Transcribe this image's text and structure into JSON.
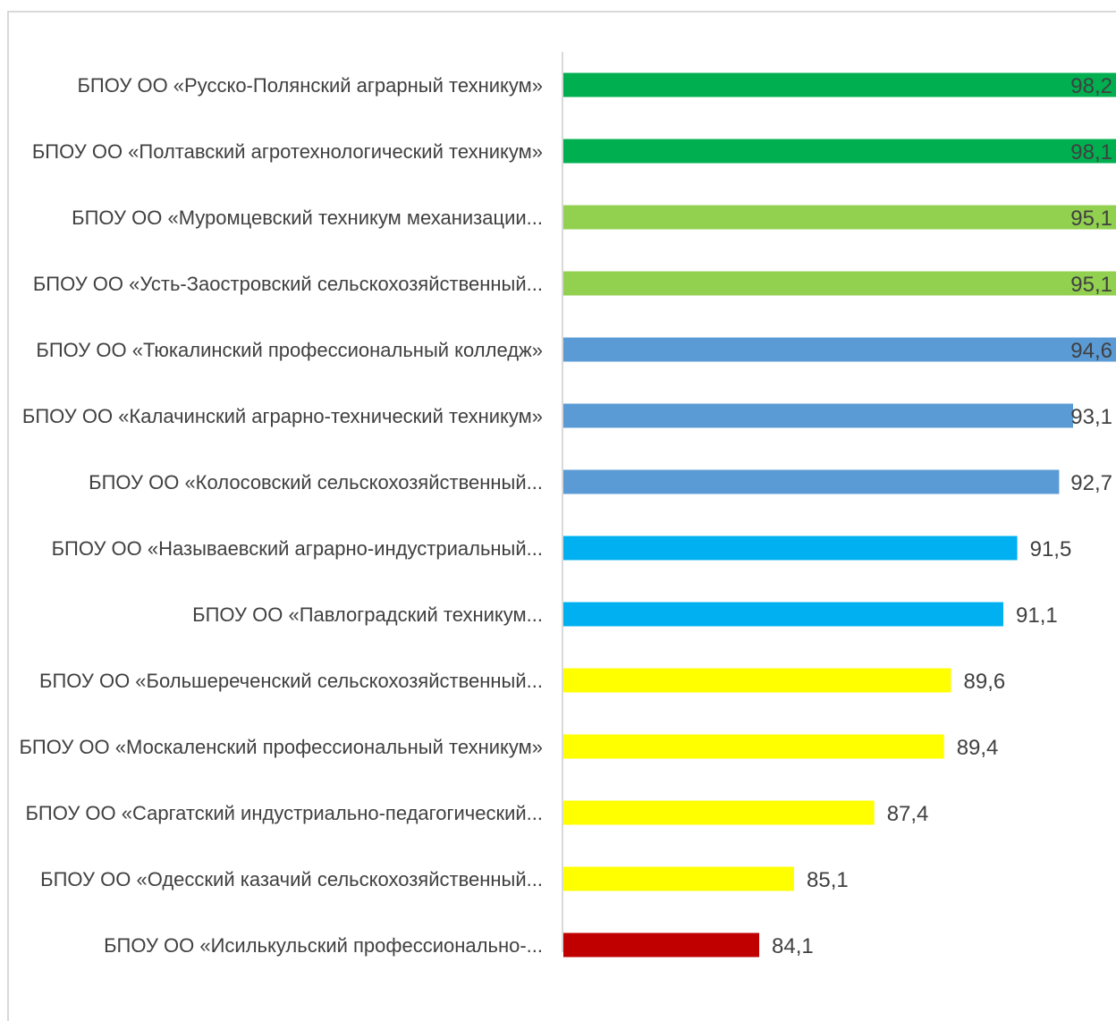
{
  "chart_data": {
    "type": "bar",
    "orientation": "horizontal",
    "title": "",
    "xlabel": "",
    "ylabel": "",
    "xlim": [
      80,
      100
    ],
    "grid": false,
    "legend": "none",
    "categories": [
      "БПОУ ОО «Русско-Полянский аграрный техникум»",
      "БПОУ ОО «Полтавский агротехнологический техникум»",
      "БПОУ ОО «Муромцевский техникум механизации...",
      "БПОУ ОО «Усть-Заостровский сельскохозяйственный...",
      "БПОУ ОО «Тюкалинский профессиональный колледж»",
      "БПОУ ОО «Калачинский аграрно-технический техникум»",
      "БПОУ ОО «Колосовский сельскохозяйственный...",
      "БПОУ ОО «Называевский аграрно-индустриальный...",
      "БПОУ ОО «Павлоградский техникум...",
      "БПОУ ОО «Большереченский сельскохозяйственный...",
      "БПОУ ОО «Москаленский профессиональный техникум»",
      "БПОУ ОО «Саргатский индустриально-педагогический...",
      "БПОУ ОО «Одесский казачий сельскохозяйственный...",
      "БПОУ ОО «Исилькульский профессионально-..."
    ],
    "values": [
      98.2,
      98.1,
      95.1,
      95.1,
      94.6,
      93.1,
      92.7,
      91.5,
      91.1,
      89.6,
      89.4,
      87.4,
      85.1,
      84.1
    ],
    "value_labels": [
      "98,2",
      "98,1",
      "95,1",
      "95,1",
      "94,6",
      "93,1",
      "92,7",
      "91,5",
      "91,1",
      "89,6",
      "89,4",
      "87,4",
      "85,1",
      "84,1"
    ],
    "bar_colors": [
      "#00b050",
      "#00b050",
      "#92d050",
      "#92d050",
      "#5b9bd5",
      "#5b9bd5",
      "#5b9bd5",
      "#00b0f0",
      "#00b0f0",
      "#ffff00",
      "#ffff00",
      "#ffff00",
      "#ffff00",
      "#c00000"
    ],
    "axis_color": "#d9d9d9",
    "text_color": "#404040"
  }
}
